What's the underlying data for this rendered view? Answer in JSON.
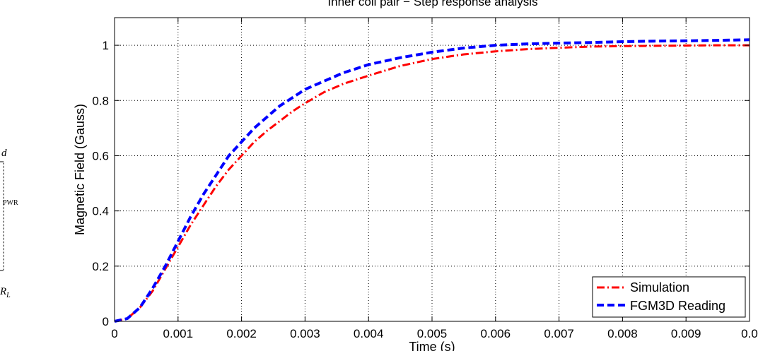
{
  "chart_data": {
    "type": "line",
    "title": "Inner coil pair − Step response analysis",
    "xlabel": "Time (s)",
    "ylabel": "Magnetic Field (Gauss)",
    "xlim": [
      0,
      0.01
    ],
    "ylim": [
      0,
      1.1
    ],
    "x_ticks": [
      "0",
      "0.001",
      "0.002",
      "0.003",
      "0.004",
      "0.005",
      "0.006",
      "0.007",
      "0.008",
      "0.009",
      "0.0"
    ],
    "y_ticks": [
      "0",
      "0.2",
      "0.4",
      "0.6",
      "0.8",
      "1"
    ],
    "grid": true,
    "legend_position": "bottom-right",
    "series": [
      {
        "name": "Simulation",
        "color": "#ff0000",
        "style": "dash-dot",
        "x": [
          0,
          0.0002,
          0.0004,
          0.0006,
          0.0008,
          0.001,
          0.0012,
          0.0014,
          0.0016,
          0.0018,
          0.002,
          0.0022,
          0.0024,
          0.0026,
          0.0028,
          0.003,
          0.0033,
          0.0036,
          0.004,
          0.0045,
          0.005,
          0.0055,
          0.006,
          0.0065,
          0.007,
          0.0075,
          0.008,
          0.0085,
          0.009,
          0.0095,
          0.01
        ],
        "y": [
          0,
          0.01,
          0.05,
          0.11,
          0.19,
          0.27,
          0.35,
          0.42,
          0.49,
          0.55,
          0.6,
          0.65,
          0.69,
          0.725,
          0.76,
          0.79,
          0.83,
          0.86,
          0.89,
          0.925,
          0.95,
          0.967,
          0.978,
          0.986,
          0.991,
          0.995,
          0.997,
          0.998,
          0.999,
          1.0,
          1.0
        ]
      },
      {
        "name": "FGM3D Reading",
        "color": "#0000ff",
        "style": "dashed",
        "x": [
          0,
          0.0002,
          0.0004,
          0.0006,
          0.0008,
          0.001,
          0.0012,
          0.0014,
          0.0016,
          0.0018,
          0.002,
          0.0022,
          0.0024,
          0.0026,
          0.0028,
          0.003,
          0.0033,
          0.0036,
          0.004,
          0.0045,
          0.005,
          0.0055,
          0.006,
          0.0065,
          0.007,
          0.0075,
          0.008,
          0.0085,
          0.009,
          0.0095,
          0.01
        ],
        "y": [
          0,
          0.01,
          0.05,
          0.12,
          0.2,
          0.29,
          0.38,
          0.46,
          0.53,
          0.6,
          0.65,
          0.7,
          0.74,
          0.78,
          0.81,
          0.84,
          0.87,
          0.9,
          0.93,
          0.955,
          0.975,
          0.99,
          1.0,
          1.005,
          1.008,
          1.01,
          1.013,
          1.015,
          1.016,
          1.018,
          1.02
        ]
      }
    ]
  },
  "side_fragment": {
    "label_d": "d",
    "label_pwr": "PWR",
    "label_r": "R",
    "label_r_sub": "L"
  }
}
